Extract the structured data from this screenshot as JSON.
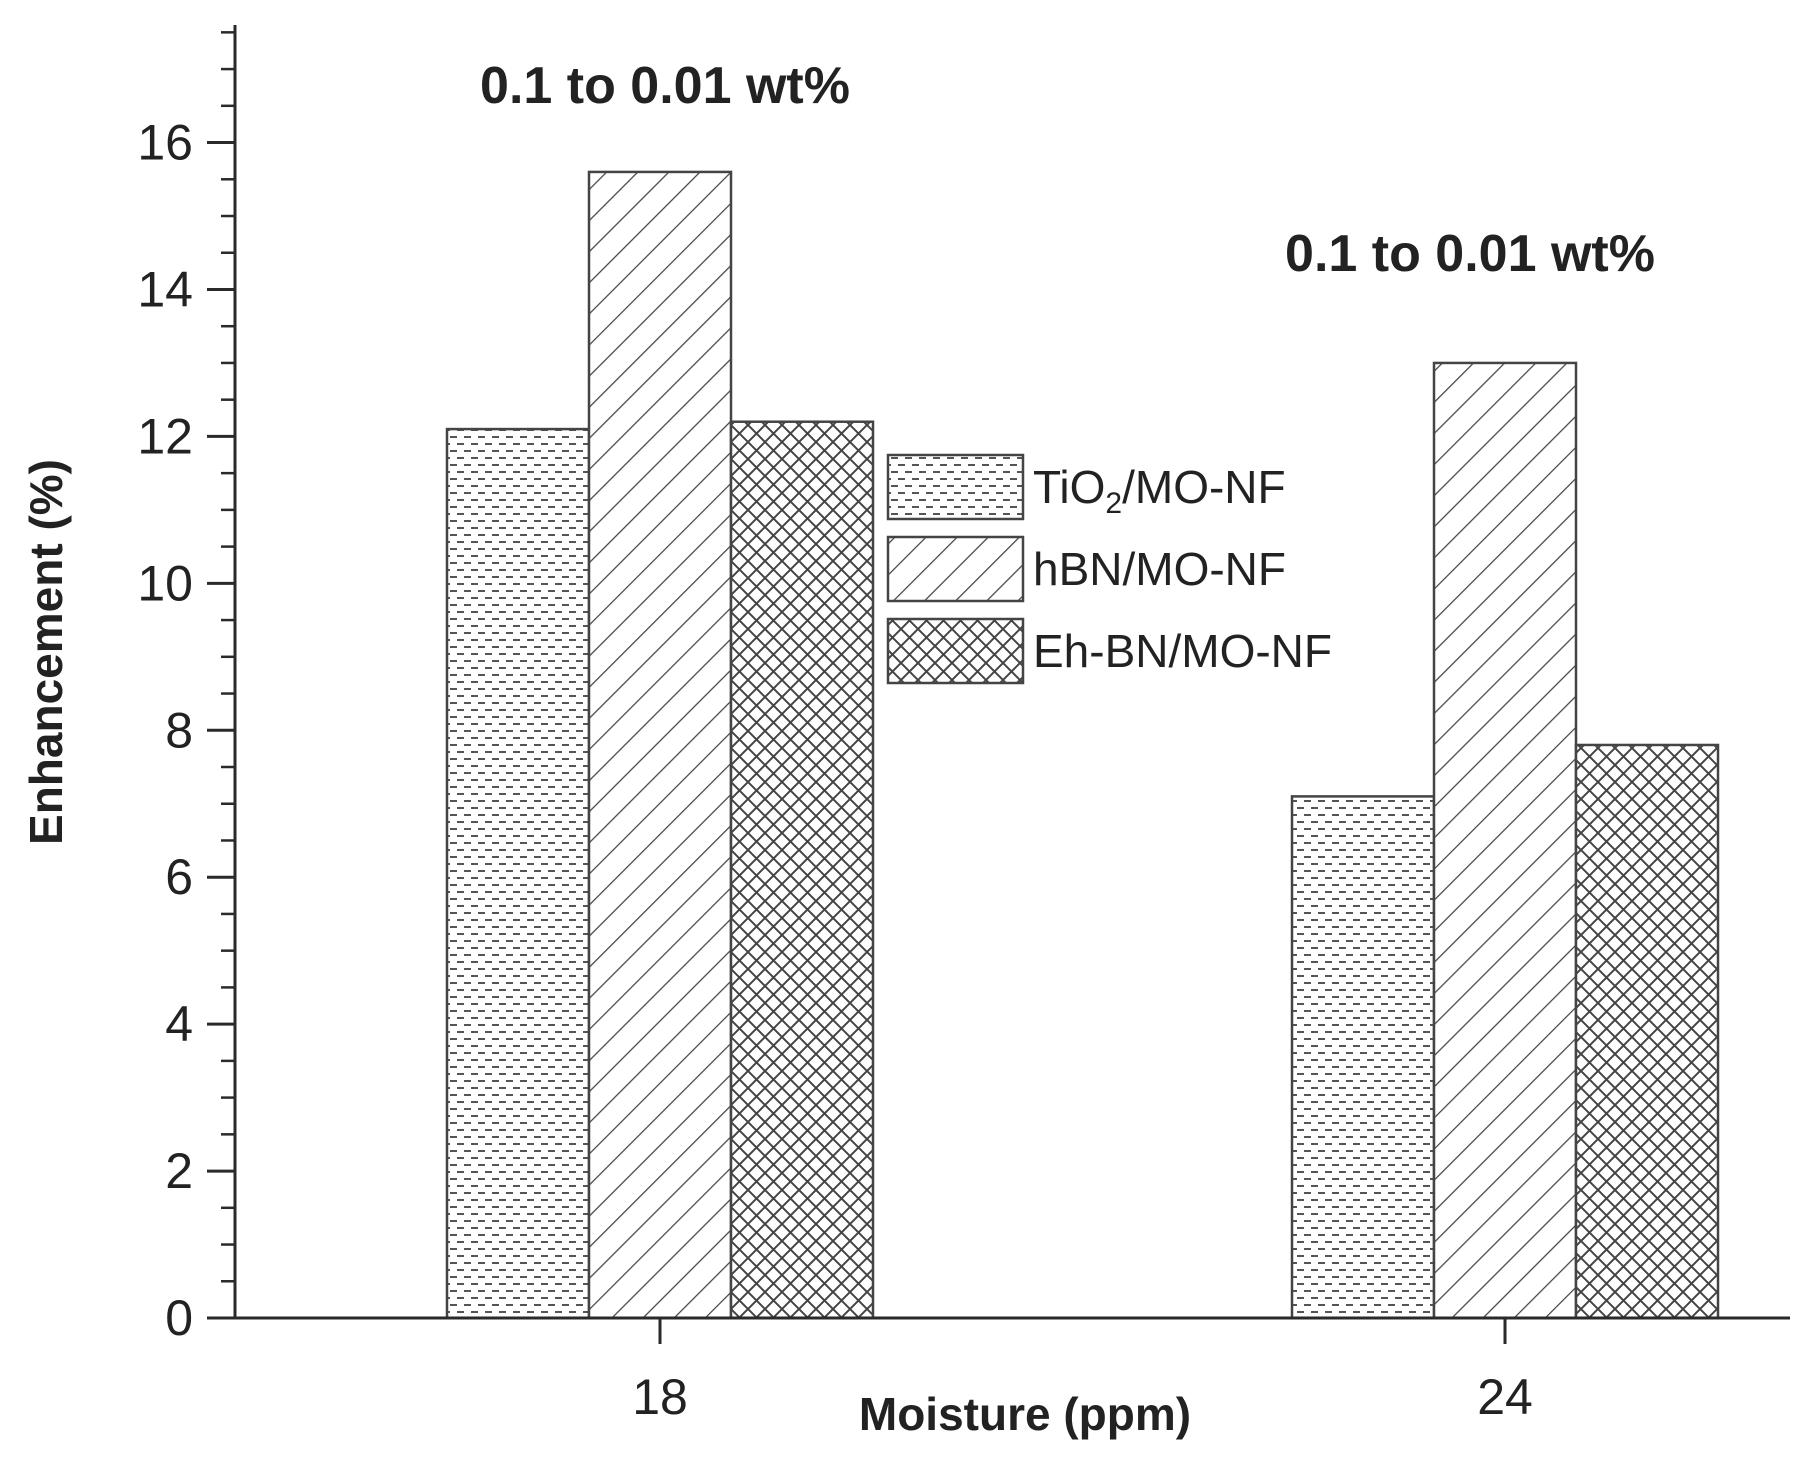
{
  "chart_data": {
    "type": "bar",
    "xlabel": "Moisture (ppm)",
    "ylabel": "Enhancement (%)",
    "categories": [
      "18",
      "24"
    ],
    "ylim": [
      0,
      17.6
    ],
    "yticks": [
      "0",
      "2",
      "4",
      "6",
      "8",
      "10",
      "12",
      "14",
      "16"
    ],
    "grid": false,
    "legend_position": "center",
    "series": [
      {
        "name": "TiO2/MO-NF",
        "name_base": "TiO",
        "name_sub": "2",
        "name_rest": "/MO-NF",
        "pattern": "dash",
        "values": [
          12.1,
          7.1
        ]
      },
      {
        "name": "hBN/MO-NF",
        "pattern": "hatch",
        "values": [
          15.6,
          13.0
        ]
      },
      {
        "name": "Eh-BN/MO-NF",
        "pattern": "cross",
        "values": [
          12.2,
          7.8
        ]
      }
    ],
    "annotations": [
      {
        "text": "0.1 to 0.01 wt%",
        "category": "18"
      },
      {
        "text": "0.1 to 0.01 wt%",
        "category": "24"
      }
    ],
    "colors": {
      "axis": "#2a2a2a",
      "bar_edge": "#444444",
      "fill": "#ffffff"
    }
  }
}
